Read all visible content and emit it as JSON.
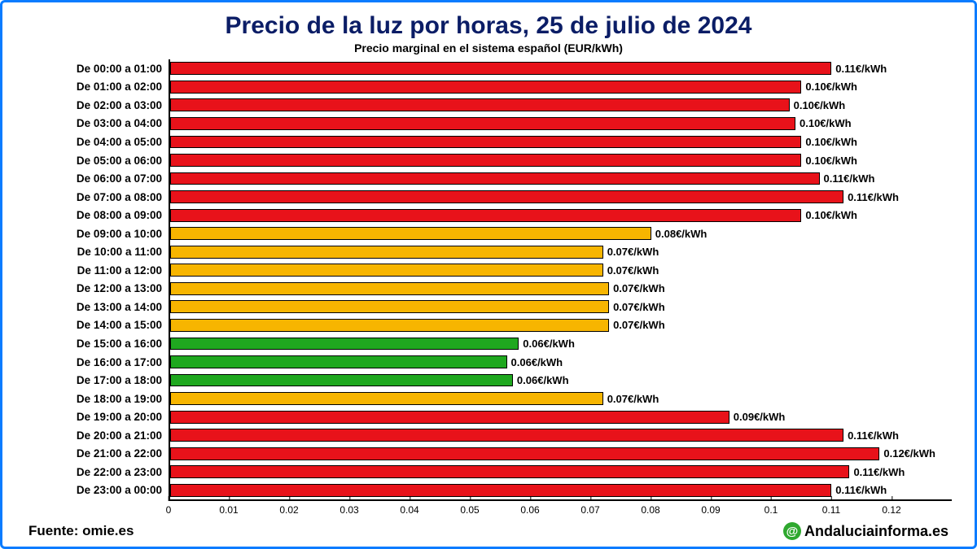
{
  "title": "Precio de la luz por horas, 25 de julio de 2024",
  "subtitle": "Precio marginal en el sistema español (EUR/kWh)",
  "source_label": "Fuente: omie.es",
  "brand": {
    "at": "@",
    "text": "Andaluciainforma.es"
  },
  "chart": {
    "type": "bar-horizontal",
    "xlim": [
      0,
      0.13
    ],
    "xtick_step": 0.01,
    "xticks": [
      "0",
      "0.01",
      "0.02",
      "0.03",
      "0.04",
      "0.05",
      "0.06",
      "0.07",
      "0.08",
      "0.09",
      "0.1",
      "0.11",
      "0.12"
    ],
    "colors": {
      "red": "#e8121a",
      "yellow": "#f7b500",
      "green": "#1fa81f",
      "bar_border": "#000000",
      "axis": "#000000",
      "title": "#0b1d66",
      "frame_border": "#0a7cff",
      "background": "#ffffff"
    },
    "bar_height_ratio": 0.7,
    "label_fontsize": 13.5,
    "value_fontsize": 13,
    "title_fontsize": 30,
    "subtitle_fontsize": 14,
    "rows": [
      {
        "label": "De 00:00 a 01:00",
        "value": 0.11,
        "value_label": "0.11€/kWh",
        "color": "red"
      },
      {
        "label": "De 01:00 a 02:00",
        "value": 0.105,
        "value_label": "0.10€/kWh",
        "color": "red"
      },
      {
        "label": "De 02:00 a 03:00",
        "value": 0.103,
        "value_label": "0.10€/kWh",
        "color": "red"
      },
      {
        "label": "De 03:00 a 04:00",
        "value": 0.104,
        "value_label": "0.10€/kWh",
        "color": "red"
      },
      {
        "label": "De 04:00 a 05:00",
        "value": 0.105,
        "value_label": "0.10€/kWh",
        "color": "red"
      },
      {
        "label": "De 05:00 a 06:00",
        "value": 0.105,
        "value_label": "0.10€/kWh",
        "color": "red"
      },
      {
        "label": "De 06:00 a 07:00",
        "value": 0.108,
        "value_label": "0.11€/kWh",
        "color": "red"
      },
      {
        "label": "De 07:00 a 08:00",
        "value": 0.112,
        "value_label": "0.11€/kWh",
        "color": "red"
      },
      {
        "label": "De 08:00 a 09:00",
        "value": 0.105,
        "value_label": "0.10€/kWh",
        "color": "red"
      },
      {
        "label": "De 09:00 a 10:00",
        "value": 0.08,
        "value_label": "0.08€/kWh",
        "color": "yellow"
      },
      {
        "label": "De 10:00 a 11:00",
        "value": 0.072,
        "value_label": "0.07€/kWh",
        "color": "yellow"
      },
      {
        "label": "De 11:00 a 12:00",
        "value": 0.072,
        "value_label": "0.07€/kWh",
        "color": "yellow"
      },
      {
        "label": "De 12:00 a 13:00",
        "value": 0.073,
        "value_label": "0.07€/kWh",
        "color": "yellow"
      },
      {
        "label": "De 13:00 a 14:00",
        "value": 0.073,
        "value_label": "0.07€/kWh",
        "color": "yellow"
      },
      {
        "label": "De 14:00 a 15:00",
        "value": 0.073,
        "value_label": "0.07€/kWh",
        "color": "yellow"
      },
      {
        "label": "De 15:00 a 16:00",
        "value": 0.058,
        "value_label": "0.06€/kWh",
        "color": "green"
      },
      {
        "label": "De 16:00 a 17:00",
        "value": 0.056,
        "value_label": "0.06€/kWh",
        "color": "green"
      },
      {
        "label": "De 17:00 a 18:00",
        "value": 0.057,
        "value_label": "0.06€/kWh",
        "color": "green"
      },
      {
        "label": "De 18:00 a 19:00",
        "value": 0.072,
        "value_label": "0.07€/kWh",
        "color": "yellow"
      },
      {
        "label": "De 19:00 a 20:00",
        "value": 0.093,
        "value_label": "0.09€/kWh",
        "color": "red"
      },
      {
        "label": "De 20:00 a 21:00",
        "value": 0.112,
        "value_label": "0.11€/kWh",
        "color": "red"
      },
      {
        "label": "De 21:00 a 22:00",
        "value": 0.118,
        "value_label": "0.12€/kWh",
        "color": "red"
      },
      {
        "label": "De 22:00 a 23:00",
        "value": 0.113,
        "value_label": "0.11€/kWh",
        "color": "red"
      },
      {
        "label": "De 23:00 a 00:00",
        "value": 0.11,
        "value_label": "0.11€/kWh",
        "color": "red"
      }
    ]
  }
}
